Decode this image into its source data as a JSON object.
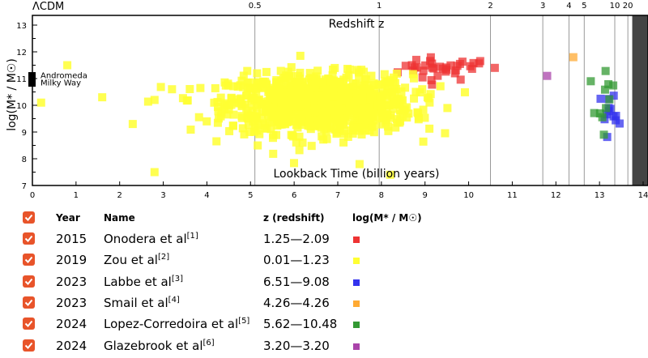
{
  "chart_data": {
    "type": "scatter",
    "title": "ΛCDM",
    "xlabel": "Lookback Time (billion years)",
    "x2label": "Redshift z",
    "ylabel": "log(M* / M☉)",
    "xlim": [
      0,
      14
    ],
    "ylim": [
      7,
      13
    ],
    "x_ticks": [
      "0",
      "1",
      "2",
      "3",
      "4",
      "5",
      "6",
      "7",
      "8",
      "9",
      "10",
      "11",
      "12",
      "13",
      "14"
    ],
    "y_ticks": [
      "7",
      "8",
      "9",
      "10",
      "11",
      "12",
      "13"
    ],
    "redshift_ticks": [
      {
        "z": "0.5",
        "t": 5.1
      },
      {
        "z": "1",
        "t": 7.95
      },
      {
        "z": "2",
        "t": 10.5
      },
      {
        "z": "3",
        "t": 11.7
      },
      {
        "z": "4",
        "t": 12.3
      },
      {
        "z": "5",
        "t": 12.65
      },
      {
        "z": "10",
        "t": 13.35
      },
      {
        "z": "20",
        "t": 13.65
      }
    ],
    "shaded_region": {
      "from": 13.75,
      "to": 14.0,
      "color": "#444444"
    },
    "references": [
      {
        "name": "Andromeda",
        "x": 0.0,
        "y": 11.1
      },
      {
        "name": "Milky Way",
        "x": 0.0,
        "y": 10.8
      }
    ],
    "series": [
      {
        "name": "Onodera et al",
        "color": "#ee3333",
        "clusters": [
          {
            "cx": 9.3,
            "cy": 11.35,
            "sx": 0.45,
            "sy": 0.22,
            "n": 28
          },
          {
            "cx": 10.2,
            "cy": 11.5,
            "sx": 0.1,
            "sy": 0.1,
            "n": 5
          }
        ],
        "extra": [
          [
            10.6,
            11.4
          ],
          [
            8.8,
            11.7
          ],
          [
            8.7,
            11.5
          ]
        ]
      },
      {
        "name": "Zou et al",
        "color": "#ffff33",
        "clusters": [
          {
            "cx": 6.6,
            "cy": 10.05,
            "sx": 1.05,
            "sy": 0.55,
            "n": 1050
          }
        ],
        "extra": [
          [
            0.8,
            11.5
          ],
          [
            0.2,
            10.1
          ],
          [
            1.6,
            10.3
          ],
          [
            2.3,
            9.3
          ],
          [
            2.8,
            7.5
          ],
          [
            8.2,
            7.4
          ],
          [
            7.5,
            7.8
          ],
          [
            4.8,
            9.6
          ],
          [
            3.2,
            10.6
          ],
          [
            2.8,
            10.2
          ]
        ]
      },
      {
        "name": "Labbe et al",
        "color": "#3333ee",
        "clusters": [
          {
            "cx": 13.2,
            "cy": 9.8,
            "sx": 0.1,
            "sy": 0.45,
            "n": 13
          }
        ],
        "extra": []
      },
      {
        "name": "Smail et al",
        "color": "#ffaa33",
        "clusters": [],
        "extra": [
          [
            12.4,
            11.8
          ]
        ]
      },
      {
        "name": "Lopez-Corredoira et al",
        "color": "#339933",
        "clusters": [
          {
            "cx": 13.2,
            "cy": 10.4,
            "sx": 0.15,
            "sy": 0.4,
            "n": 9
          }
        ],
        "extra": [
          [
            12.8,
            10.9
          ],
          [
            13.1,
            8.9
          ]
        ]
      },
      {
        "name": "Glazebrook et al",
        "color": "#aa44aa",
        "clusters": [],
        "extra": [
          [
            11.8,
            11.1
          ]
        ]
      }
    ]
  },
  "legend": {
    "headers": {
      "year": "Year",
      "name": "Name",
      "z": "z (redshift)",
      "mass": "log(M* / M☉)"
    },
    "rows": [
      {
        "year": "2015",
        "name": "Onodera et al",
        "ref": "[1]",
        "z": "1.25—2.09",
        "color": "#ee3333",
        "checked": true
      },
      {
        "year": "2019",
        "name": "Zou et al",
        "ref": "[2]",
        "z": "0.01—1.23",
        "color": "#ffff33",
        "checked": true
      },
      {
        "year": "2023",
        "name": "Labbe et al",
        "ref": "[3]",
        "z": "6.51—9.08",
        "color": "#3333ee",
        "checked": true
      },
      {
        "year": "2023",
        "name": "Smail et al",
        "ref": "[4]",
        "z": "4.26—4.26",
        "color": "#ffaa33",
        "checked": true
      },
      {
        "year": "2024",
        "name": "Lopez-Corredoira et al",
        "ref": "[5]",
        "z": "5.62—10.48",
        "color": "#339933",
        "checked": true
      },
      {
        "year": "2024",
        "name": "Glazebrook et al",
        "ref": "[6]",
        "z": "3.20—3.20",
        "color": "#aa44aa",
        "checked": true
      }
    ]
  }
}
